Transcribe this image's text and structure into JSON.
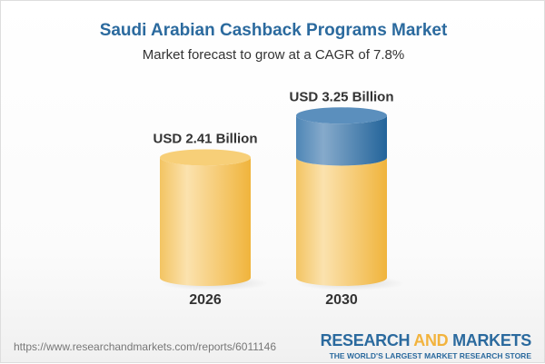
{
  "title": "Saudi Arabian Cashback Programs Market",
  "subtitle": "Market forecast to grow at a CAGR of 7.8%",
  "chart_data": {
    "type": "bar",
    "style": "3d-cylinder",
    "categories": [
      "2026",
      "2030"
    ],
    "values": [
      2.41,
      3.25
    ],
    "data_labels": [
      "USD 2.41 Billion",
      "USD 3.25 Billion"
    ],
    "unit": "USD Billion",
    "growth_segment_color": "#4a83b3",
    "base_color": "#f3c55f",
    "grid": false
  },
  "footer": {
    "url": "https://www.researchandmarkets.com/reports/6011146",
    "logo_part1": "RESEARCH ",
    "logo_part2": "AND",
    "logo_part3": " MARKETS",
    "tagline": "THE WORLD'S LARGEST MARKET RESEARCH STORE"
  }
}
